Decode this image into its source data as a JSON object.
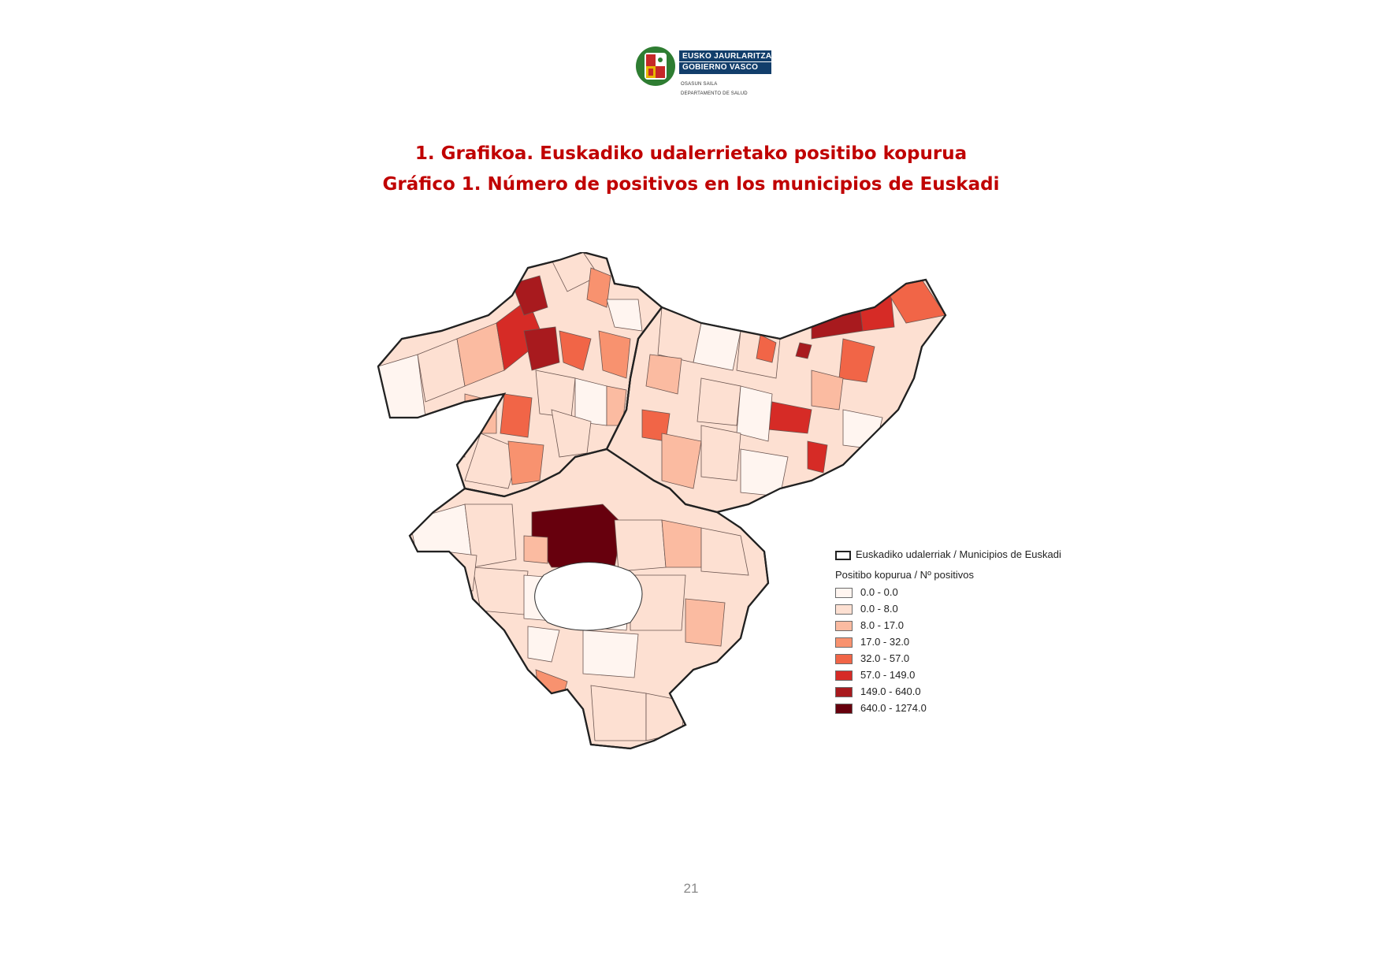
{
  "header": {
    "logo_line1": "EUSKO JAURLARITZA",
    "logo_line2": "GOBIERNO VASCO",
    "dept_eu": "OSASUN SAILA",
    "dept_es": "DEPARTAMENTO DE SALUD",
    "bar_color": "#123e6b"
  },
  "titles": {
    "eu": "1. Grafikoa. Euskadiko udalerrietako positibo kopurua",
    "es": "Gráfico 1. Número de positivos en los municipios de Euskadi"
  },
  "legend": {
    "boundary_label": "Euskadiko udalerriak / Municipios de Euskadi",
    "title": "Positibo kopurua / Nº positivos",
    "classes": [
      {
        "label": "0.0 - 0.0",
        "color": "#fff5f0"
      },
      {
        "label": "0.0 - 8.0",
        "color": "#fde0d2"
      },
      {
        "label": "8.0 - 17.0",
        "color": "#fbbba1"
      },
      {
        "label": "17.0 - 32.0",
        "color": "#f8926f"
      },
      {
        "label": "32.0 - 57.0",
        "color": "#f16547"
      },
      {
        "label": "57.0 - 149.0",
        "color": "#d62b26"
      },
      {
        "label": "149.0 - 640.0",
        "color": "#a81a1e"
      },
      {
        "label": "640.0 - 1274.0",
        "color": "#67000d"
      }
    ]
  },
  "page_number": "21"
}
